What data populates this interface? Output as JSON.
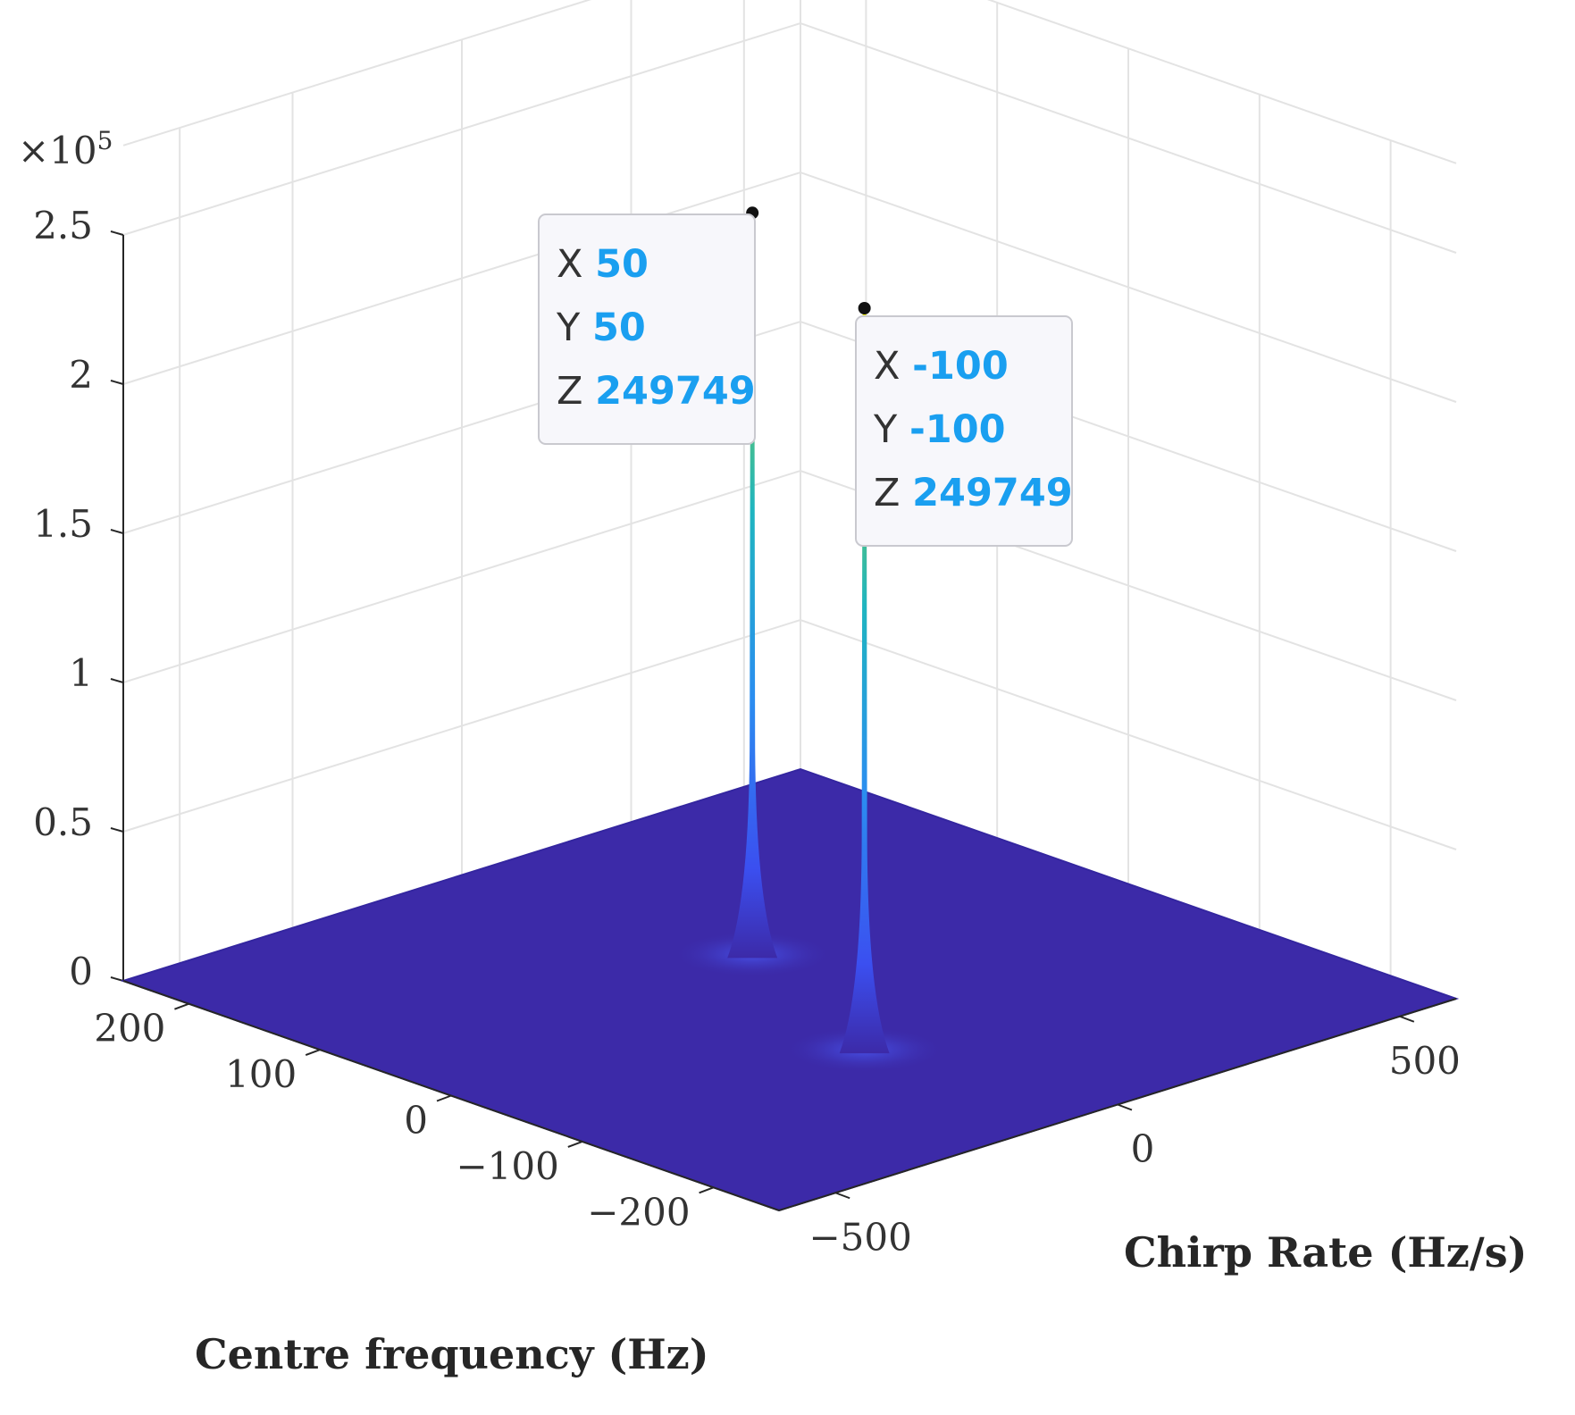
{
  "chart_data": {
    "type": "surface",
    "x_label": "Centre frequency (Hz)",
    "y_label": "Chirp Rate (Hz/s)",
    "z_exponent_label": "×10",
    "z_exponent_power": "5",
    "x_range": [
      -250,
      250
    ],
    "y_range": [
      -600,
      600
    ],
    "z_range": [
      0,
      250000
    ],
    "x_ticks": [
      200,
      100,
      0,
      -100,
      -200
    ],
    "x_tick_labels": [
      "200",
      "100",
      "0",
      "−100",
      "−200"
    ],
    "y_ticks": [
      -500,
      0,
      500
    ],
    "y_tick_labels": [
      "−500",
      "0",
      "500"
    ],
    "z_ticks": [
      0,
      50000,
      100000,
      150000,
      200000,
      250000
    ],
    "z_tick_labels": [
      "0",
      "0.5",
      "1",
      "1.5",
      "2",
      "2.5"
    ],
    "grid": true,
    "colormap": "parula",
    "surface_base_color": "#3c2aa8",
    "peaks": [
      {
        "x": 50,
        "y": 50,
        "z": 249749
      },
      {
        "x": -100,
        "y": -100,
        "z": 249749
      }
    ],
    "datatips": [
      {
        "x_key": "X",
        "x": "50",
        "y_key": "Y",
        "y": "50",
        "z_key": "Z",
        "z": "249749"
      },
      {
        "x_key": "X",
        "x": "-100",
        "y_key": "Y",
        "y": "-100",
        "z_key": "Z",
        "z": "249749"
      }
    ],
    "datatip_value_color": "#1a9ff0"
  }
}
